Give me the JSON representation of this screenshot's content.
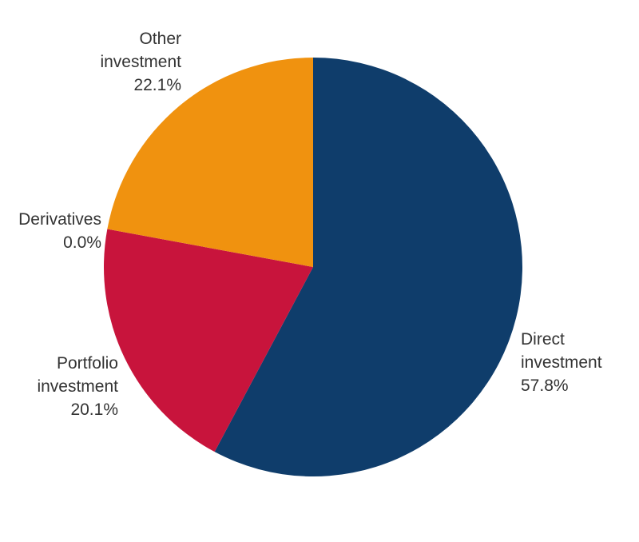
{
  "chart_data": {
    "type": "pie",
    "title": "",
    "start_angle_deg": 0,
    "direction": "clockwise",
    "categories": [
      "Direct investment",
      "Portfolio investment",
      "Derivatives",
      "Other investment"
    ],
    "values": [
      57.8,
      20.1,
      0.0,
      22.1
    ],
    "colors": [
      "#0f3d6b",
      "#c8143c",
      "#c8143c",
      "#f0920f"
    ],
    "value_format": "percent, 1 decimal",
    "legend": "none (direct labels)"
  },
  "labels": {
    "other": {
      "line1": "Other",
      "line2": "investment",
      "value": "22.1%"
    },
    "derivatives": {
      "line1": "Derivatives",
      "value": "0.0%"
    },
    "portfolio": {
      "line1": "Portfolio",
      "line2": "investment",
      "value": "20.1%"
    },
    "direct": {
      "line1": "Direct",
      "line2": "investment",
      "value": "57.8%"
    }
  }
}
